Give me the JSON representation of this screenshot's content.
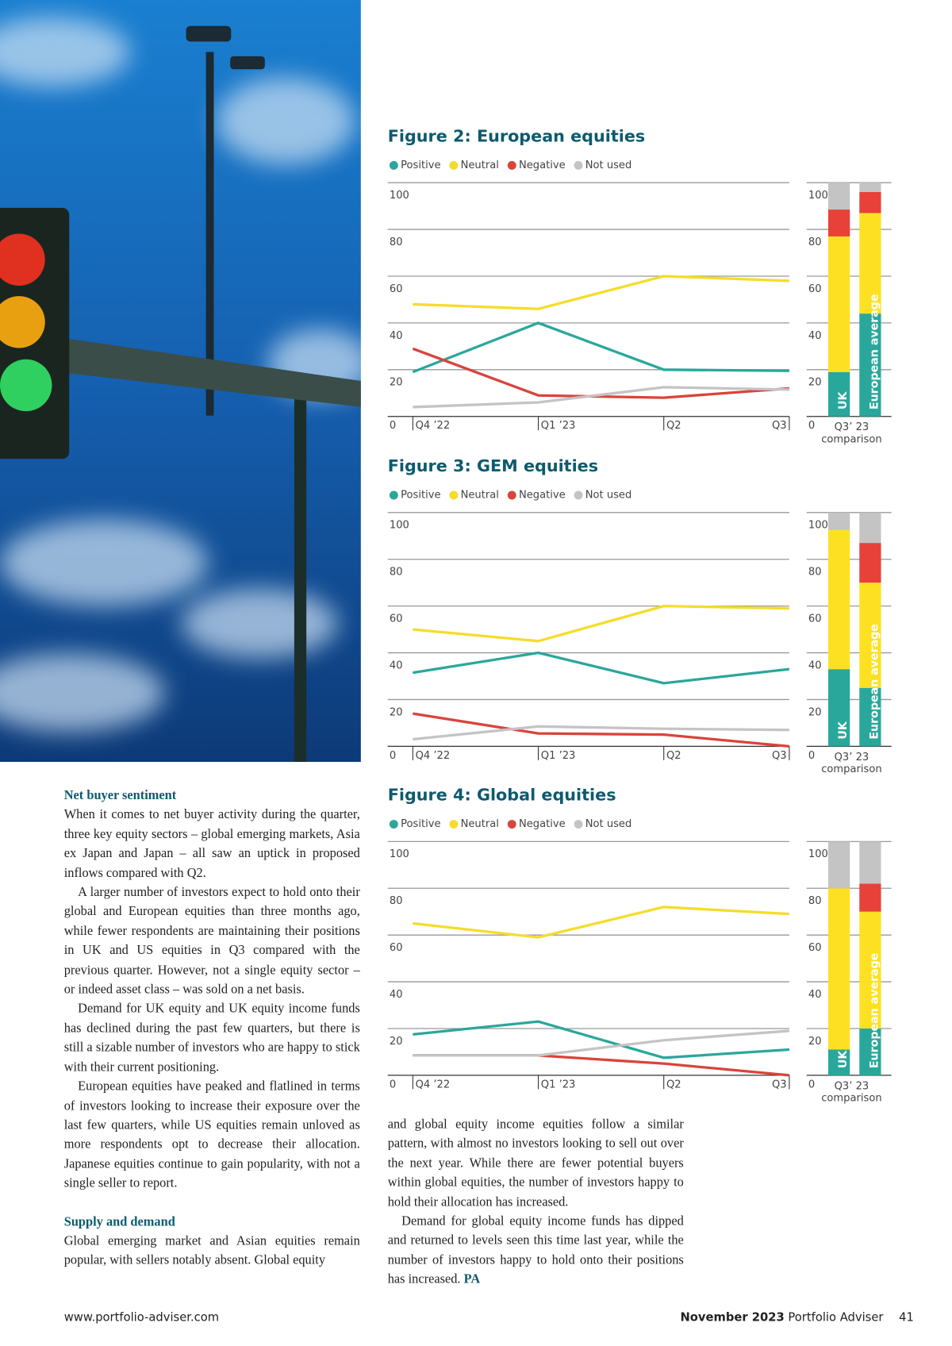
{
  "chart_data": [
    {
      "type": "line",
      "title": "Figure 2: European equities",
      "categories": [
        "Q4 ’22",
        "Q1 ’23",
        "Q2",
        "Q3"
      ],
      "series": [
        {
          "name": "Positive",
          "color": "#2aa79b",
          "values": [
            19,
            40,
            20,
            19.5
          ]
        },
        {
          "name": "Neutral",
          "color": "#f5dc2a",
          "values": [
            48,
            46,
            60,
            58
          ]
        },
        {
          "name": "Negative",
          "color": "#d9443b",
          "values": [
            29,
            9,
            8,
            12
          ]
        },
        {
          "name": "Not used",
          "color": "#c4c4c4",
          "values": [
            4,
            6,
            12.5,
            11.5
          ]
        }
      ],
      "ylim": [
        0,
        100
      ],
      "yticks": [
        0,
        20,
        40,
        60,
        80,
        100
      ],
      "grid": true,
      "legend": "top-left"
    },
    {
      "type": "stacked-bar",
      "categories": [
        "UK",
        "European average"
      ],
      "xlabel": "Q3’ 23 comparison",
      "series": [
        {
          "color": "#2aa79b",
          "values": [
            19,
            44
          ]
        },
        {
          "color": "#fde022",
          "values": [
            58,
            43
          ]
        },
        {
          "color": "#e8413a",
          "values": [
            11.5,
            9
          ]
        },
        {
          "color": "#c4c4c4",
          "values": [
            11.5,
            4
          ]
        }
      ],
      "ylim": [
        0,
        100
      ],
      "yticks": [
        0,
        20,
        40,
        60,
        80,
        100
      ],
      "grid": true
    },
    {
      "type": "line",
      "title": "Figure 3: GEM equities",
      "categories": [
        "Q4 ’22",
        "Q1 ’23",
        "Q2",
        "Q3"
      ],
      "series": [
        {
          "name": "Positive",
          "color": "#2aa79b",
          "values": [
            31.5,
            40,
            27,
            33
          ]
        },
        {
          "name": "Neutral",
          "color": "#f5dc2a",
          "values": [
            50,
            45,
            60,
            59
          ]
        },
        {
          "name": "Negative",
          "color": "#d9443b",
          "values": [
            14,
            5.5,
            5,
            0
          ]
        },
        {
          "name": "Not used",
          "color": "#c4c4c4",
          "values": [
            3,
            8.5,
            7.5,
            7
          ]
        }
      ],
      "ylim": [
        0,
        100
      ],
      "yticks": [
        0,
        20,
        40,
        60,
        80,
        100
      ],
      "grid": true,
      "legend": "top-left"
    },
    {
      "type": "stacked-bar",
      "categories": [
        "UK",
        "European average"
      ],
      "xlabel": "Q3’ 23 comparison",
      "series": [
        {
          "color": "#2aa79b",
          "values": [
            33,
            25
          ]
        },
        {
          "color": "#fde022",
          "values": [
            59.5,
            45
          ]
        },
        {
          "color": "#e8413a",
          "values": [
            0,
            17
          ]
        },
        {
          "color": "#c4c4c4",
          "values": [
            7.5,
            13
          ]
        }
      ],
      "ylim": [
        0,
        100
      ],
      "yticks": [
        0,
        20,
        40,
        60,
        80,
        100
      ],
      "grid": true
    },
    {
      "type": "line",
      "title": "Figure 4: Global equities",
      "categories": [
        "Q4 ’22",
        "Q1 ’23",
        "Q2",
        "Q3"
      ],
      "series": [
        {
          "name": "Positive",
          "color": "#2aa79b",
          "values": [
            17.5,
            23,
            7.5,
            11
          ]
        },
        {
          "name": "Neutral",
          "color": "#f5dc2a",
          "values": [
            65,
            59,
            72,
            69
          ]
        },
        {
          "name": "Negative",
          "color": "#d9443b",
          "values": [
            8.5,
            8.5,
            5,
            0
          ]
        },
        {
          "name": "Not used",
          "color": "#c4c4c4",
          "values": [
            8.5,
            8.5,
            15,
            19
          ]
        }
      ],
      "ylim": [
        0,
        100
      ],
      "yticks": [
        0,
        20,
        40,
        60,
        80,
        100
      ],
      "grid": true,
      "legend": "top-left"
    },
    {
      "type": "stacked-bar",
      "categories": [
        "UK",
        "European average"
      ],
      "xlabel": "Q3’ 23 comparison",
      "series": [
        {
          "color": "#2aa79b",
          "values": [
            11,
            20
          ]
        },
        {
          "color": "#fde022",
          "values": [
            69,
            50
          ]
        },
        {
          "color": "#e8413a",
          "values": [
            0,
            12
          ]
        },
        {
          "color": "#c4c4c4",
          "values": [
            20,
            18
          ]
        }
      ],
      "ylim": [
        0,
        100
      ],
      "yticks": [
        0,
        20,
        40,
        60,
        80,
        100
      ],
      "grid": true
    }
  ],
  "article": {
    "sections": [
      {
        "heading": "Net buyer sentiment",
        "paragraphs": [
          "When it comes to net buyer activity during the quarter, three key equity sectors – global emerging markets, Asia ex Japan and Japan – all saw an uptick in proposed inflows compared with Q2.",
          "A larger number of investors expect to hold onto their global and European equities than three months ago, while fewer respondents are maintaining their positions in UK and US equities in Q3 compared with the previous quarter. However, not a single equity sector – or indeed asset class – was sold on a net basis.",
          "Demand for UK equity and UK equity income funds has declined during the past few quarters, but there is still a sizable number of investors who are happy to stick with their current positioning.",
          "European equities have peaked and flatlined in terms of investors looking to increase their exposure over the last few quarters, while US equities remain unloved as more respondents opt to decrease their allocation. Japanese equities continue to gain popularity, with not a single seller to report."
        ]
      },
      {
        "heading": "Supply and demand",
        "paragraphs": [
          "Global emerging market and Asian equities remain popular, with sellers notably absent. Global equity"
        ]
      }
    ],
    "continued": [
      "and global equity income equities follow a similar pattern, with almost no investors looking to sell out over the next year. While there are fewer potential buyers within global equities, the number of investors happy to hold their allocation has increased.",
      "Demand for global equity income funds has dipped and returned to levels seen this time last year, while the number of investors happy to hold onto their positions has increased."
    ],
    "signoff": "PA"
  },
  "footer": {
    "url": "www.portfolio-adviser.com",
    "issue": "November 2023",
    "magazine": "Portfolio Adviser",
    "page": "41"
  }
}
